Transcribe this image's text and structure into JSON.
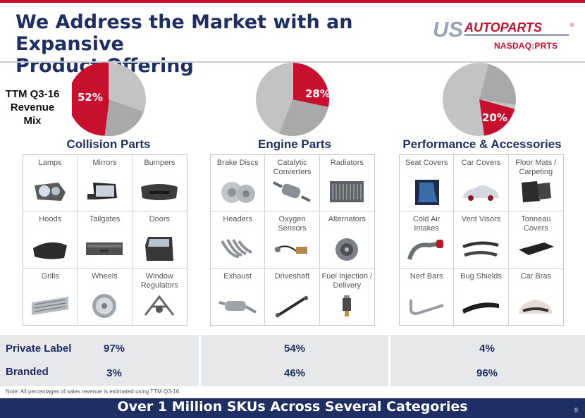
{
  "slide": {
    "title_line1": "We Address the Market with an Expansive",
    "title_line2": "Product Offering",
    "logo_text": "USAUTOPARTS",
    "ticker": "NASDAQ:PRTS",
    "mix_label_line1": "TTM Q3-16",
    "mix_label_line2": "Revenue",
    "mix_label_line3": "Mix",
    "note": "Note: All percentages of sales revenue  is estimated using TTM Q3-16",
    "footer": "Over 1 Million SKUs Across Several Categories",
    "page_number": "8"
  },
  "colors": {
    "navy": "#1f2f63",
    "red": "#c8102e",
    "pie_gray": "#c3c3c3",
    "pie_gray_dark": "#a9a9a9"
  },
  "categories": [
    {
      "name": "Collision Parts",
      "share_label": "52%",
      "share": 52,
      "items": [
        "Lamps",
        "Mirrors",
        "Bumpers",
        "Hoods",
        "Tailgates",
        "Doors",
        "Grills",
        "Wheels",
        "Window Regulators"
      ],
      "private_label": "97%",
      "branded": "3%"
    },
    {
      "name": "Engine Parts",
      "share_label": "28%",
      "share": 28,
      "items": [
        "Brake Discs",
        "Catalytic Converters",
        "Radiators",
        "Headers",
        "Oxygen Sensors",
        "Alternators",
        "Exhaust",
        "Driveshaft",
        "Fuel Injection / Delivery"
      ],
      "private_label": "54%",
      "branded": "46%"
    },
    {
      "name": "Performance & Accessories",
      "share_label": "20%",
      "share": 20,
      "items": [
        "Seat Covers",
        "Car Covers",
        "Floor Mats / Carpeting",
        "Cold Air Intakes",
        "Vent Visors",
        "Tonneau Covers",
        "Nerf Bars",
        "Bug Shields",
        "Car Bras"
      ],
      "private_label": "4%",
      "branded": "96%"
    }
  ],
  "table": {
    "private_label": "Private Label",
    "branded": "Branded"
  }
}
